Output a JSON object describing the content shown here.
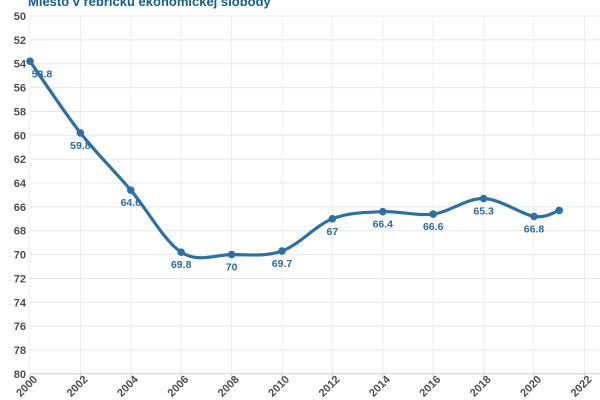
{
  "chart_data": {
    "type": "line",
    "title": "Miesto v rebríčku ekonomickej slobody",
    "curve": "spline",
    "legend": "none",
    "grid": true,
    "xlabel": "",
    "ylabel": "",
    "y_axis": {
      "inverted": true,
      "min": 50,
      "max": 80,
      "tick_step": 2
    },
    "x_range": [
      2000,
      2022
    ],
    "x_ticks": [
      "2000",
      "2002",
      "2004",
      "2006",
      "2008",
      "2010",
      "2012",
      "2014",
      "2016",
      "2018",
      "2020",
      "2022"
    ],
    "y_ticks": [
      50,
      52,
      54,
      56,
      58,
      60,
      62,
      64,
      66,
      68,
      70,
      72,
      74,
      76,
      78,
      80
    ],
    "series": [
      {
        "name": "Miesto v rebríčku ekonomickej slobody",
        "points": [
          {
            "x": 2000,
            "y": 53.8,
            "label": "53.8"
          },
          {
            "x": 2002,
            "y": 59.8,
            "label": "59.8"
          },
          {
            "x": 2004,
            "y": 64.6,
            "label": "64.6"
          },
          {
            "x": 2006,
            "y": 69.8,
            "label": "69.8"
          },
          {
            "x": 2008,
            "y": 70,
            "label": "70"
          },
          {
            "x": 2010,
            "y": 69.7,
            "label": "69.7"
          },
          {
            "x": 2012,
            "y": 67,
            "label": "67"
          },
          {
            "x": 2014,
            "y": 66.4,
            "label": "66.4"
          },
          {
            "x": 2016,
            "y": 66.6,
            "label": "66.6"
          },
          {
            "x": 2018,
            "y": 65.3,
            "label": "65.3"
          },
          {
            "x": 2020,
            "y": 66.8,
            "label": "66.8"
          },
          {
            "x": 2021,
            "y": 66.3,
            "label": ""
          }
        ]
      }
    ],
    "colors": {
      "line": "#2d70a1",
      "marker": "#2d70a1",
      "data_label": "#2a6d9c",
      "title": "#175e8d",
      "axis_text": "#4d4d4d",
      "grid_horizontal": "#e7e7e7",
      "grid_vertical": "#efefef",
      "axis_line": "#cfcfcf",
      "background": "#ffffff"
    }
  }
}
